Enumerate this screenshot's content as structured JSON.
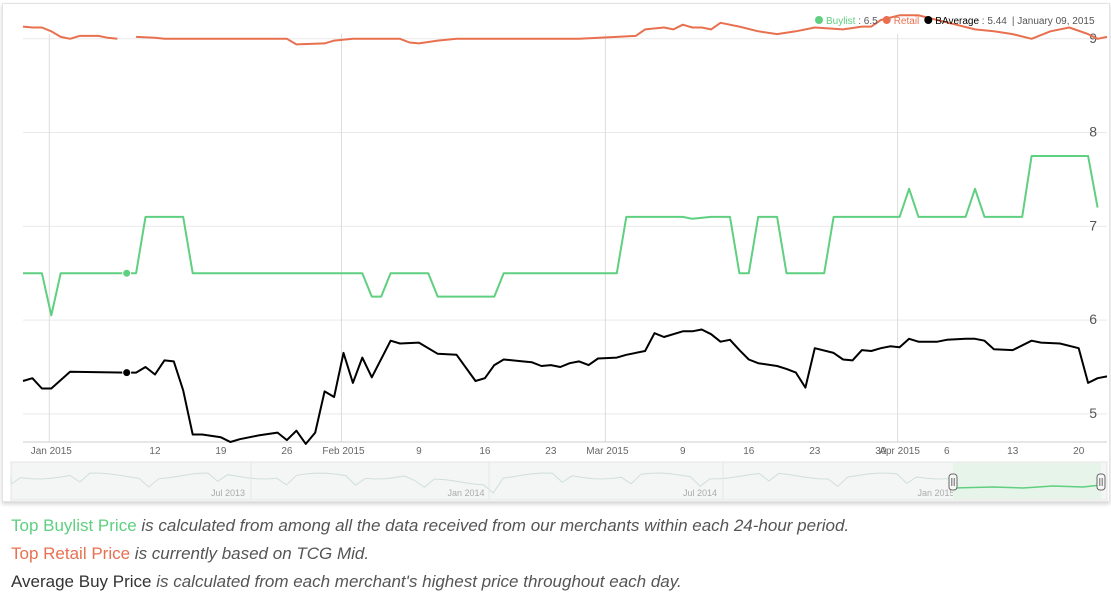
{
  "legend": {
    "buylist_label": "Buylist",
    "buylist_value": ": 6.5",
    "retail_label": "Retail",
    "avg_label": "BAverage",
    "avg_value": ": 5.44",
    "date": "| January 09, 2015"
  },
  "colors": {
    "buylist": "#5fcf80",
    "retail": "#e8704f",
    "average": "#000000",
    "navigator_fill": "#e6f4ea"
  },
  "navigator": {
    "labels": [
      "Jul 2013",
      "Jan 2014",
      "Jul 2014",
      "Jan 2015"
    ]
  },
  "descriptions": [
    {
      "term": "Top Buylist Price",
      "rest": " is calculated from among all the data received from our merchants within each 24-hour period.",
      "color": "#5fcf80"
    },
    {
      "term": "Top Retail Price",
      "rest": " is currently based on TCG Mid.",
      "color": "#e8704f"
    },
    {
      "term": "Average Buy Price",
      "rest": " is calculated from each merchant's highest price throughout each day.",
      "color": "#333333"
    }
  ],
  "chart_data": {
    "type": "line",
    "x_unit": "date",
    "xlim": [
      "2014-12-29",
      "2015-04-23"
    ],
    "ylim": [
      4.7,
      9.2
    ],
    "y_ticks": [
      5,
      6,
      7,
      8,
      9
    ],
    "x_ticks": [
      {
        "date": "2015-01-01",
        "label": "Jan 2015"
      },
      {
        "date": "2015-01-12",
        "label": "12"
      },
      {
        "date": "2015-01-19",
        "label": "19"
      },
      {
        "date": "2015-01-26",
        "label": "26"
      },
      {
        "date": "2015-02-01",
        "label": "Feb 2015"
      },
      {
        "date": "2015-02-09",
        "label": "9"
      },
      {
        "date": "2015-02-16",
        "label": "16"
      },
      {
        "date": "2015-02-23",
        "label": "23"
      },
      {
        "date": "2015-03-01",
        "label": "Mar 2015"
      },
      {
        "date": "2015-03-09",
        "label": "9"
      },
      {
        "date": "2015-03-16",
        "label": "16"
      },
      {
        "date": "2015-03-23",
        "label": "23"
      },
      {
        "date": "2015-03-30",
        "label": "30"
      },
      {
        "date": "2015-04-01",
        "label": "Apr 2015"
      },
      {
        "date": "2015-04-06",
        "label": "6"
      },
      {
        "date": "2015-04-13",
        "label": "13"
      },
      {
        "date": "2015-04-20",
        "label": "20"
      }
    ],
    "highlight": {
      "date": "2015-01-09",
      "buylist": 6.5,
      "average": 5.44
    },
    "series": [
      {
        "name": "Buylist",
        "color": "#5fcf80",
        "points": [
          [
            "2014-12-29",
            6.5
          ],
          [
            "2014-12-31",
            6.5
          ],
          [
            "2015-01-01",
            6.05
          ],
          [
            "2015-01-02",
            6.5
          ],
          [
            "2015-01-10",
            6.5
          ],
          [
            "2015-01-11",
            7.1
          ],
          [
            "2015-01-15",
            7.1
          ],
          [
            "2015-01-16",
            6.5
          ],
          [
            "2015-02-03",
            6.5
          ],
          [
            "2015-02-04",
            6.25
          ],
          [
            "2015-02-05",
            6.25
          ],
          [
            "2015-02-06",
            6.5
          ],
          [
            "2015-02-10",
            6.5
          ],
          [
            "2015-02-11",
            6.25
          ],
          [
            "2015-02-17",
            6.25
          ],
          [
            "2015-02-18",
            6.5
          ],
          [
            "2015-03-02",
            6.5
          ],
          [
            "2015-03-03",
            7.1
          ],
          [
            "2015-03-09",
            7.1
          ],
          [
            "2015-03-10",
            7.08
          ],
          [
            "2015-03-12",
            7.1
          ],
          [
            "2015-03-14",
            7.1
          ],
          [
            "2015-03-15",
            6.5
          ],
          [
            "2015-03-16",
            6.5
          ],
          [
            "2015-03-17",
            7.1
          ],
          [
            "2015-03-19",
            7.1
          ],
          [
            "2015-03-20",
            6.5
          ],
          [
            "2015-03-24",
            6.5
          ],
          [
            "2015-03-25",
            7.1
          ],
          [
            "2015-04-01",
            7.1
          ],
          [
            "2015-04-02",
            7.4
          ],
          [
            "2015-04-03",
            7.1
          ],
          [
            "2015-04-08",
            7.1
          ],
          [
            "2015-04-09",
            7.4
          ],
          [
            "2015-04-10",
            7.1
          ],
          [
            "2015-04-14",
            7.1
          ],
          [
            "2015-04-15",
            7.75
          ],
          [
            "2015-04-21",
            7.75
          ],
          [
            "2015-04-22",
            7.2
          ]
        ]
      },
      {
        "name": "Retail",
        "color": "#e8704f",
        "segments": [
          [
            [
              "2014-12-29",
              9.13
            ],
            [
              "2014-12-30",
              9.12
            ],
            [
              "2014-12-31",
              9.12
            ],
            [
              "2015-01-01",
              9.08
            ],
            [
              "2015-01-02",
              9.02
            ],
            [
              "2015-01-03",
              9.0
            ],
            [
              "2015-01-04",
              9.03
            ],
            [
              "2015-01-06",
              9.03
            ],
            [
              "2015-01-07",
              9.01
            ],
            [
              "2015-01-08",
              9.0
            ]
          ],
          [
            [
              "2015-01-10",
              9.02
            ],
            [
              "2015-01-12",
              9.01
            ],
            [
              "2015-01-13",
              9.0
            ],
            [
              "2015-01-19",
              9.0
            ],
            [
              "2015-01-26",
              9.0
            ],
            [
              "2015-01-27",
              8.94
            ],
            [
              "2015-01-30",
              8.95
            ],
            [
              "2015-01-31",
              8.98
            ],
            [
              "2015-02-02",
              9.0
            ],
            [
              "2015-02-07",
              9.0
            ],
            [
              "2015-02-08",
              8.96
            ],
            [
              "2015-02-09",
              8.95
            ],
            [
              "2015-02-11",
              8.98
            ],
            [
              "2015-02-13",
              9.0
            ],
            [
              "2015-02-23",
              9.0
            ],
            [
              "2015-02-26",
              9.0
            ],
            [
              "2015-03-02",
              9.02
            ],
            [
              "2015-03-04",
              9.03
            ],
            [
              "2015-03-05",
              9.1
            ],
            [
              "2015-03-07",
              9.12
            ],
            [
              "2015-03-08",
              9.1
            ],
            [
              "2015-03-09",
              9.15
            ],
            [
              "2015-03-10",
              9.12
            ],
            [
              "2015-03-11",
              9.12
            ],
            [
              "2015-03-12",
              9.1
            ],
            [
              "2015-03-13",
              9.17
            ],
            [
              "2015-03-15",
              9.13
            ],
            [
              "2015-03-17",
              9.08
            ],
            [
              "2015-03-19",
              9.05
            ],
            [
              "2015-03-21",
              9.08
            ],
            [
              "2015-03-23",
              9.12
            ],
            [
              "2015-03-26",
              9.1
            ],
            [
              "2015-03-28",
              9.13
            ],
            [
              "2015-03-29",
              9.13
            ],
            [
              "2015-03-30",
              9.2
            ],
            [
              "2015-04-01",
              9.25
            ],
            [
              "2015-04-03",
              9.25
            ],
            [
              "2015-04-05",
              9.2
            ],
            [
              "2015-04-07",
              9.15
            ],
            [
              "2015-04-09",
              9.1
            ],
            [
              "2015-04-11",
              9.08
            ],
            [
              "2015-04-13",
              9.05
            ],
            [
              "2015-04-15",
              9.0
            ],
            [
              "2015-04-17",
              9.08
            ],
            [
              "2015-04-19",
              9.12
            ],
            [
              "2015-04-21",
              9.05
            ],
            [
              "2015-04-22",
              9.0
            ],
            [
              "2015-04-23",
              9.02
            ]
          ]
        ]
      },
      {
        "name": "BAverage",
        "color": "#000000",
        "points": [
          [
            "2014-12-29",
            5.35
          ],
          [
            "2014-12-30",
            5.38
          ],
          [
            "2014-12-31",
            5.27
          ],
          [
            "2015-01-01",
            5.27
          ],
          [
            "2015-01-03",
            5.45
          ],
          [
            "2015-01-09",
            5.44
          ],
          [
            "2015-01-10",
            5.44
          ],
          [
            "2015-01-11",
            5.5
          ],
          [
            "2015-01-12",
            5.42
          ],
          [
            "2015-01-13",
            5.57
          ],
          [
            "2015-01-14",
            5.56
          ],
          [
            "2015-01-15",
            5.25
          ],
          [
            "2015-01-16",
            4.78
          ],
          [
            "2015-01-17",
            4.78
          ],
          [
            "2015-01-19",
            4.75
          ],
          [
            "2015-01-20",
            4.7
          ],
          [
            "2015-01-21",
            4.73
          ],
          [
            "2015-01-23",
            4.77
          ],
          [
            "2015-01-25",
            4.8
          ],
          [
            "2015-01-26",
            4.72
          ],
          [
            "2015-01-27",
            4.82
          ],
          [
            "2015-01-28",
            4.68
          ],
          [
            "2015-01-29",
            4.8
          ],
          [
            "2015-01-30",
            5.24
          ],
          [
            "2015-01-31",
            5.18
          ],
          [
            "2015-02-01",
            5.65
          ],
          [
            "2015-02-02",
            5.33
          ],
          [
            "2015-02-03",
            5.6
          ],
          [
            "2015-02-04",
            5.39
          ],
          [
            "2015-02-06",
            5.78
          ],
          [
            "2015-02-07",
            5.75
          ],
          [
            "2015-02-09",
            5.76
          ],
          [
            "2015-02-11",
            5.64
          ],
          [
            "2015-02-13",
            5.63
          ],
          [
            "2015-02-15",
            5.35
          ],
          [
            "2015-02-16",
            5.38
          ],
          [
            "2015-02-17",
            5.52
          ],
          [
            "2015-02-18",
            5.58
          ],
          [
            "2015-02-20",
            5.56
          ],
          [
            "2015-02-21",
            5.55
          ],
          [
            "2015-02-22",
            5.51
          ],
          [
            "2015-02-23",
            5.52
          ],
          [
            "2015-02-24",
            5.5
          ],
          [
            "2015-02-25",
            5.54
          ],
          [
            "2015-02-26",
            5.56
          ],
          [
            "2015-02-27",
            5.52
          ],
          [
            "2015-02-28",
            5.59
          ],
          [
            "2015-03-02",
            5.6
          ],
          [
            "2015-03-03",
            5.63
          ],
          [
            "2015-03-05",
            5.67
          ],
          [
            "2015-03-06",
            5.86
          ],
          [
            "2015-03-07",
            5.82
          ],
          [
            "2015-03-09",
            5.88
          ],
          [
            "2015-03-10",
            5.88
          ],
          [
            "2015-03-11",
            5.9
          ],
          [
            "2015-03-12",
            5.85
          ],
          [
            "2015-03-13",
            5.77
          ],
          [
            "2015-03-14",
            5.79
          ],
          [
            "2015-03-15",
            5.68
          ],
          [
            "2015-03-16",
            5.58
          ],
          [
            "2015-03-17",
            5.54
          ],
          [
            "2015-03-19",
            5.51
          ],
          [
            "2015-03-20",
            5.48
          ],
          [
            "2015-03-21",
            5.44
          ],
          [
            "2015-03-22",
            5.28
          ],
          [
            "2015-03-23",
            5.7
          ],
          [
            "2015-03-25",
            5.65
          ],
          [
            "2015-03-26",
            5.58
          ],
          [
            "2015-03-27",
            5.57
          ],
          [
            "2015-03-28",
            5.68
          ],
          [
            "2015-03-29",
            5.67
          ],
          [
            "2015-03-30",
            5.7
          ],
          [
            "2015-03-31",
            5.72
          ],
          [
            "2015-04-01",
            5.71
          ],
          [
            "2015-04-02",
            5.8
          ],
          [
            "2015-04-03",
            5.77
          ],
          [
            "2015-04-05",
            5.77
          ],
          [
            "2015-04-06",
            5.79
          ],
          [
            "2015-04-08",
            5.8
          ],
          [
            "2015-04-09",
            5.8
          ],
          [
            "2015-04-10",
            5.78
          ],
          [
            "2015-04-11",
            5.69
          ],
          [
            "2015-04-13",
            5.68
          ],
          [
            "2015-04-15",
            5.78
          ],
          [
            "2015-04-16",
            5.76
          ],
          [
            "2015-04-18",
            5.75
          ],
          [
            "2015-04-20",
            5.7
          ],
          [
            "2015-04-21",
            5.33
          ],
          [
            "2015-04-22",
            5.38
          ],
          [
            "2015-04-23",
            5.4
          ]
        ]
      }
    ]
  }
}
